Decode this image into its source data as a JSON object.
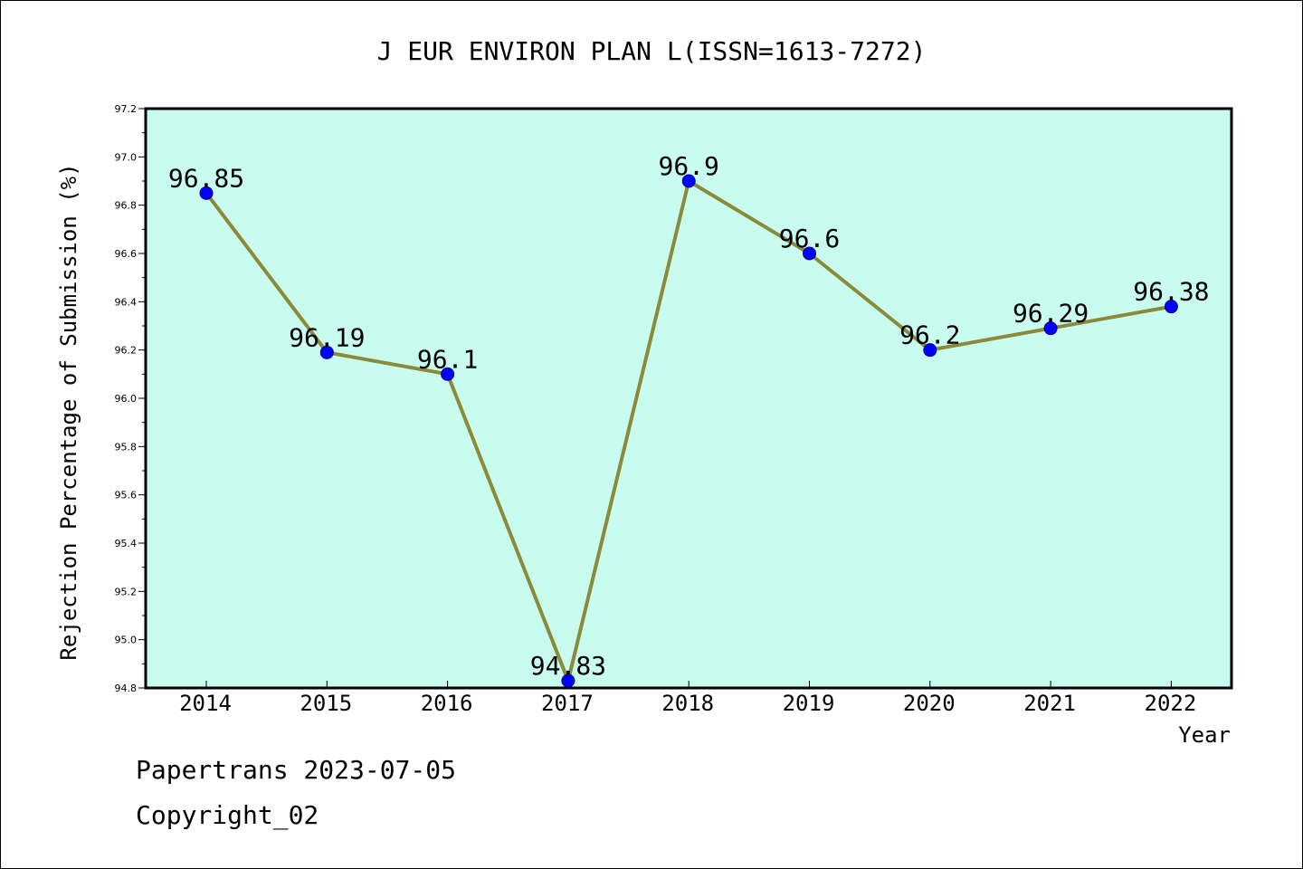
{
  "chart_data": {
    "type": "line",
    "title": "J EUR ENVIRON PLAN L(ISSN=1613-7272)",
    "xlabel": "Year",
    "ylabel": "Rejection Percentage of Submission (%)",
    "categories": [
      "2014",
      "2015",
      "2016",
      "2017",
      "2018",
      "2019",
      "2020",
      "2021",
      "2022"
    ],
    "series": [
      {
        "values": [
          96.85,
          96.19,
          96.1,
          94.83,
          96.9,
          96.6,
          96.2,
          96.29,
          96.38
        ],
        "data_labels": [
          "96.85",
          "96.19",
          "96.1",
          "94.83",
          "96.9",
          "96.6",
          "96.2",
          "96.29",
          "96.38"
        ]
      }
    ],
    "ylim": [
      94.8,
      97.2
    ],
    "yticks": [
      "94.8",
      "95.0",
      "95.2",
      "95.4",
      "95.6",
      "95.8",
      "96.0",
      "96.2",
      "96.4",
      "96.6",
      "96.8",
      "97.0",
      "97.2"
    ],
    "grid": false,
    "colors": {
      "plot_background": "#c8fcee",
      "line": "#8b8a3a",
      "marker": "#0000ff"
    }
  },
  "footer": {
    "line1": "Papertrans 2023-07-05",
    "line2": "Copyright_02"
  }
}
